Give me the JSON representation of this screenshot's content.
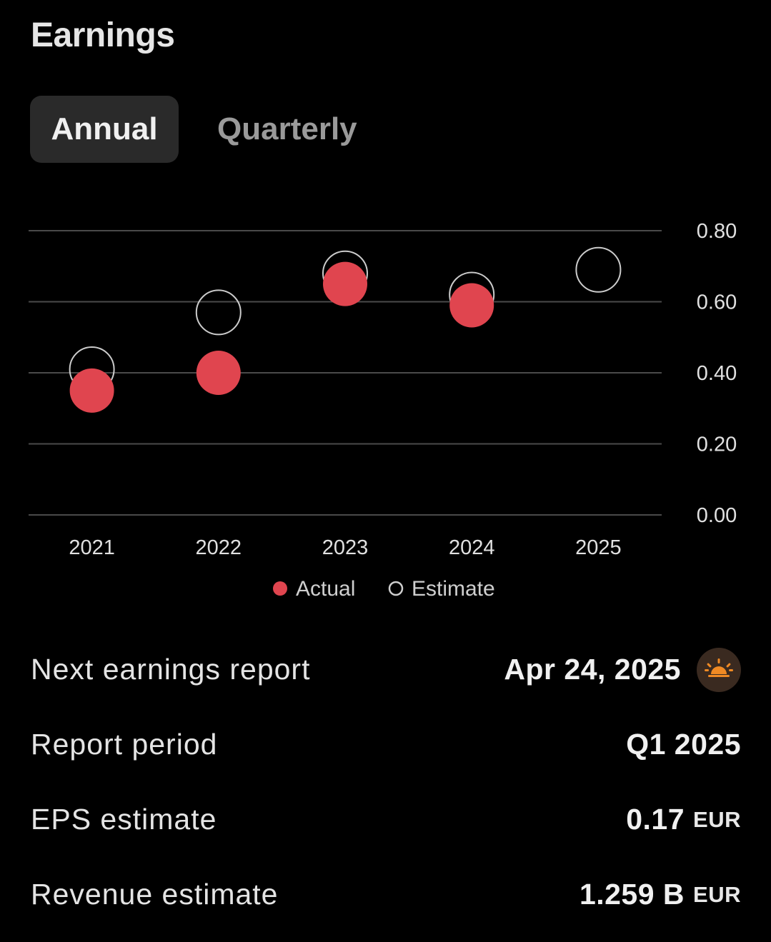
{
  "header": {
    "title": "Earnings"
  },
  "tabs": [
    {
      "label": "Annual",
      "active": true
    },
    {
      "label": "Quarterly",
      "active": false
    }
  ],
  "chart_data": {
    "type": "scatter",
    "categories": [
      "2021",
      "2022",
      "2023",
      "2024",
      "2025"
    ],
    "series": [
      {
        "name": "Actual",
        "values": [
          0.35,
          0.4,
          0.65,
          0.59,
          null
        ],
        "color": "#e0454f",
        "style": "filled"
      },
      {
        "name": "Estimate",
        "values": [
          0.41,
          0.57,
          0.68,
          0.62,
          0.69
        ],
        "color": "#cccccc",
        "style": "hollow"
      }
    ],
    "y_ticks": [
      "0.80",
      "0.60",
      "0.40",
      "0.20",
      "0.00"
    ],
    "ylim": [
      0,
      0.8
    ],
    "yaxis_side": "right",
    "grid": true,
    "legend_position": "bottom-center"
  },
  "details": {
    "next_report": {
      "label": "Next earnings report",
      "value": "Apr 24, 2025",
      "icon": "sunrise-icon",
      "icon_color": "#f08a24"
    },
    "report_period": {
      "label": "Report period",
      "value": "Q1 2025"
    },
    "eps_estimate": {
      "label": "EPS estimate",
      "value": "0.17",
      "unit": "EUR"
    },
    "revenue_estimate": {
      "label": "Revenue estimate",
      "value": "1.259 B",
      "unit": "EUR"
    }
  }
}
